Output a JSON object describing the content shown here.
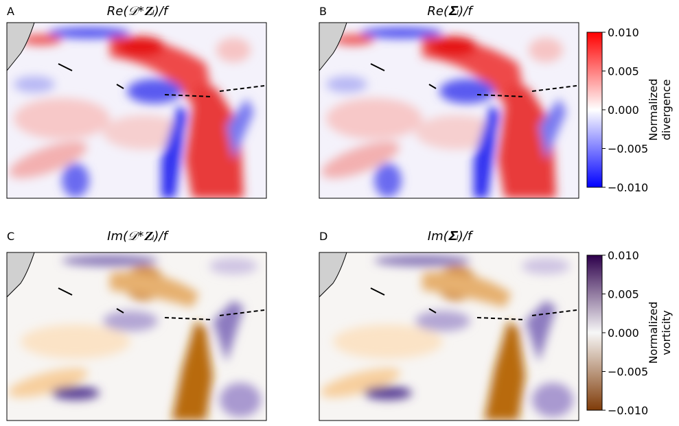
{
  "panels": [
    {
      "label": "A",
      "title": "Re(𝒟*𝐙ₗ)/f"
    },
    {
      "label": "B",
      "title": "Re(𝚺ₗ)/f"
    },
    {
      "label": "C",
      "title": "Im(𝒟*𝐙ₗ)/f"
    },
    {
      "label": "D",
      "title": "Im(𝚺ₗ)/f"
    }
  ],
  "colorbars": [
    {
      "label": [
        "Normalized",
        "divergence"
      ],
      "lim": [
        -0.01,
        0.01
      ],
      "colors": [
        "#0000ff",
        "#ffffff",
        "#ff0000"
      ],
      "ticks": [
        {
          "value": 0.01,
          "label": "0.010"
        },
        {
          "value": 0.005,
          "label": "0.005"
        },
        {
          "value": 0,
          "label": "0.000"
        },
        {
          "value": -0.005,
          "label": "−0.005"
        },
        {
          "value": -0.01,
          "label": "−0.010"
        }
      ]
    },
    {
      "label": [
        "Normalized",
        "vorticity"
      ],
      "lim": [
        -0.01,
        0.01
      ],
      "colors": [
        "#7f3b08",
        "#f7f7f7",
        "#2d004b"
      ],
      "ticks": [
        {
          "value": 0.01,
          "label": "0.010"
        },
        {
          "value": 0.005,
          "label": "0.005"
        },
        {
          "value": 0,
          "label": "0.000"
        },
        {
          "value": -0.005,
          "label": "−0.005"
        },
        {
          "value": -0.01,
          "label": "−0.010"
        }
      ]
    }
  ]
}
